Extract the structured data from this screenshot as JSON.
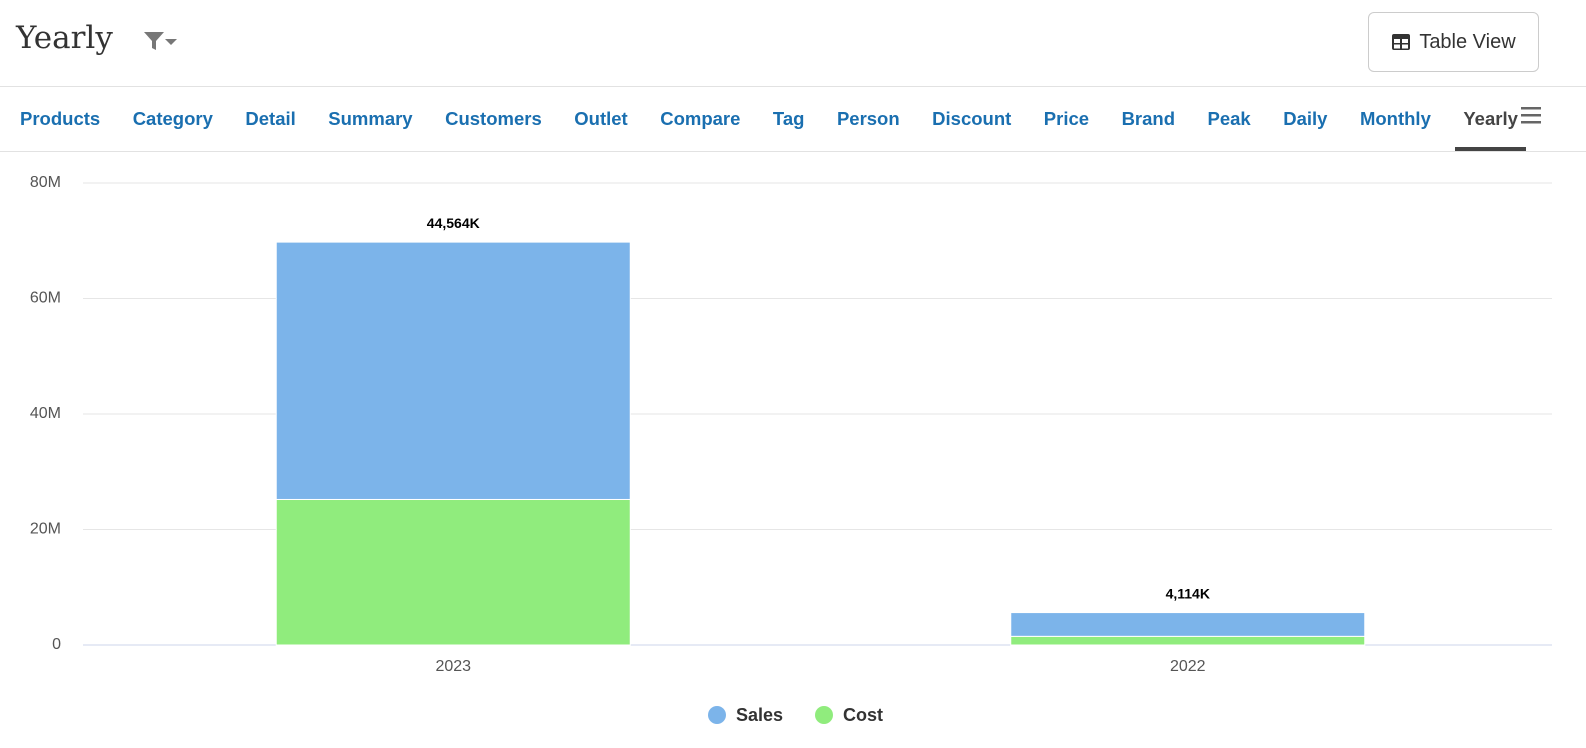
{
  "header": {
    "title": "Yearly",
    "button": "Table View"
  },
  "tabs": [
    "Products",
    "Category",
    "Detail",
    "Summary",
    "Customers",
    "Outlet",
    "Compare",
    "Tag",
    "Person",
    "Discount",
    "Price",
    "Brand",
    "Peak",
    "Daily",
    "Monthly",
    "Yearly"
  ],
  "chart_data": {
    "type": "bar",
    "stacked": true,
    "categories": [
      "2023",
      "2022"
    ],
    "series": [
      {
        "name": "Sales",
        "color": "#7cb4ea",
        "values": [
          44564000,
          4114000
        ],
        "value_labels": [
          "44,564K",
          "4,114K"
        ]
      },
      {
        "name": "Cost",
        "color": "#90ec7d",
        "values": [
          25200000,
          1500000
        ]
      }
    ],
    "ylim": [
      0,
      80000000
    ],
    "yticks": [
      0,
      {
        "value": 20000000,
        "label": "20M"
      },
      {
        "value": 40000000,
        "label": "40M"
      },
      {
        "value": 60000000,
        "label": "60M"
      },
      {
        "value": 80000000,
        "label": "80M"
      }
    ],
    "grid": true,
    "legend": "bottom"
  }
}
